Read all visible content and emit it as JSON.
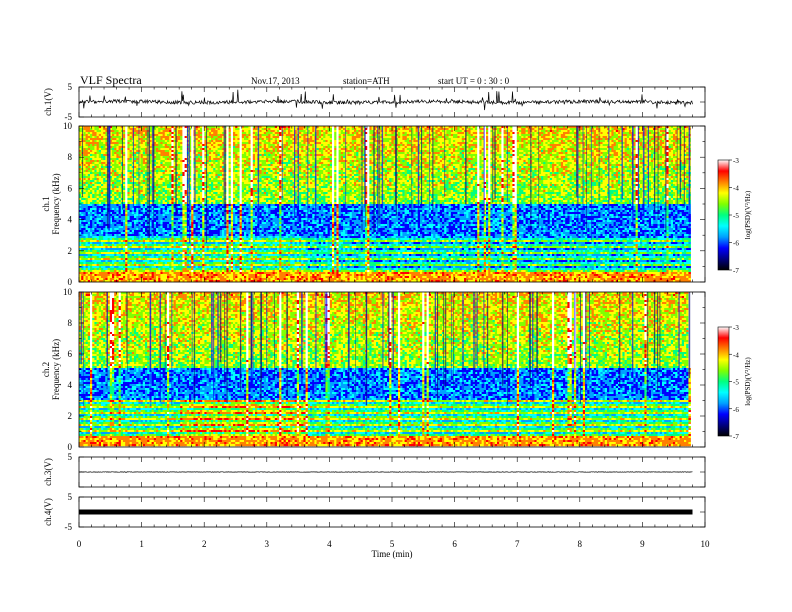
{
  "header": {
    "title": "VLF  Spectra",
    "date": "Nov.17, 2013",
    "station": "station=ATH",
    "start": "start  UT  =   0 : 30 : 0"
  },
  "chart_data": {
    "type": "heatmap",
    "xlabel": "Time  (min)",
    "xlim": [
      0,
      10
    ],
    "x_ticks": [
      "0",
      "1",
      "2",
      "3",
      "4",
      "5",
      "6",
      "7",
      "8",
      "9",
      "10"
    ],
    "data_end_min": 9.8,
    "panels": [
      {
        "id": "ch1_waveform",
        "type": "line",
        "ylabel": "ch.1(V)",
        "ylim": [
          -5,
          5
        ],
        "y_ticks": [
          "5",
          "-5"
        ],
        "baseline": 0
      },
      {
        "id": "ch1_spectrogram",
        "type": "heatmap",
        "ylabel_top": "ch.1",
        "ylabel": "Frequency  (kHz)",
        "ylim": [
          0,
          10
        ],
        "y_ticks": [
          "0",
          "2",
          "4",
          "6",
          "8",
          "10"
        ],
        "colorbar_label": "log(PSD)(V²/Hz)",
        "colorbar_range": [
          -7,
          -3
        ],
        "colorbar_ticks": [
          "-3",
          "-4",
          "-5",
          "-6",
          "-7"
        ]
      },
      {
        "id": "ch2_spectrogram",
        "type": "heatmap",
        "ylabel_top": "ch.2",
        "ylabel": "Frequency  (kHz)",
        "ylim": [
          0,
          10
        ],
        "y_ticks": [
          "0",
          "2",
          "4",
          "6",
          "8",
          "10"
        ],
        "colorbar_label": "log(PSD)(V²/Hz)",
        "colorbar_range": [
          -7,
          -3
        ],
        "colorbar_ticks": [
          "-3",
          "-4",
          "-5",
          "-6",
          "-7"
        ]
      },
      {
        "id": "ch3_waveform",
        "type": "line",
        "ylabel": "ch.3(V)",
        "ylim": [
          -5,
          5
        ],
        "y_ticks": [
          "5"
        ],
        "baseline": 0
      },
      {
        "id": "ch4_waveform",
        "type": "line",
        "ylabel": "ch.4(V)",
        "ylim": [
          -5,
          5
        ],
        "y_ticks": [
          "5",
          "-5"
        ],
        "baseline": 0
      }
    ],
    "colors": {
      "colormap": [
        "#000000",
        "#000080",
        "#0000ff",
        "#00a0ff",
        "#00ffff",
        "#00ff80",
        "#80ff00",
        "#ffff00",
        "#ff8000",
        "#ff0000",
        "#ffffff"
      ],
      "trace": "#000000"
    }
  }
}
